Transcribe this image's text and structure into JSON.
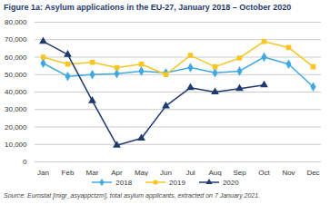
{
  "chart_data": {
    "type": "line",
    "title": "Figure 1a: Asylum applications in the EU-27, January 2018 – October 2020",
    "caption": "Source: Eurostat [migr_asyappctzm], total asylum applicants, extracted on 7 January 2021.",
    "categories": [
      "Jan",
      "Feb",
      "Mar",
      "Apr",
      "May",
      "Jun",
      "Jul",
      "Aug",
      "Sep",
      "Oct",
      "Nov",
      "Dec"
    ],
    "series": [
      {
        "name": "2018",
        "color": "#41a9e0",
        "marker": "diamond",
        "values": [
          56500,
          49000,
          50000,
          50500,
          52000,
          51000,
          54000,
          51000,
          52000,
          60000,
          56000,
          43000
        ]
      },
      {
        "name": "2019",
        "color": "#f7c524",
        "marker": "square",
        "values": [
          60000,
          56000,
          57000,
          54000,
          56000,
          50000,
          61000,
          54500,
          59500,
          69000,
          65500,
          54500
        ]
      },
      {
        "name": "2020",
        "color": "#1f3a6e",
        "marker": "triangle",
        "values": [
          69000,
          61500,
          35000,
          9500,
          13500,
          32000,
          42500,
          40000,
          42000,
          44000,
          null,
          null
        ]
      }
    ],
    "ylim": [
      0,
      80000
    ],
    "yticks": [
      0,
      {
        "value": 10000,
        "label": "10,000"
      },
      {
        "value": 20000,
        "label": "20,000"
      },
      {
        "value": 30000,
        "label": "30,000"
      },
      {
        "value": 40000,
        "label": "40,000"
      },
      {
        "value": 50000,
        "label": "50,000"
      },
      {
        "value": 60000,
        "label": "60,000"
      },
      {
        "value": 70000,
        "label": "70,000"
      },
      {
        "value": 80000,
        "label": "80,000"
      }
    ],
    "grid": true,
    "legend": "bottom"
  }
}
